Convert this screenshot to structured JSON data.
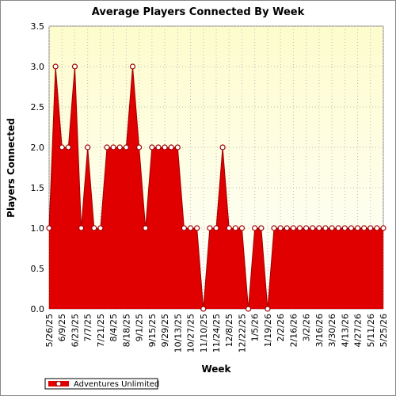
{
  "chart_data": {
    "type": "area",
    "title": "Average Players Connected By Week",
    "x_label": "Week",
    "y_label": "Players Connected",
    "categories": [
      "5/26/25",
      null,
      "6/9/25",
      null,
      "6/23/25",
      null,
      "7/7/25",
      null,
      "7/21/25",
      null,
      "8/4/25",
      null,
      "8/18/25",
      null,
      "9/1/25",
      null,
      "9/15/25",
      null,
      "9/29/25",
      null,
      "10/13/25",
      null,
      "10/27/25",
      null,
      "11/10/25",
      null,
      "11/24/25",
      null,
      "12/8/25",
      null,
      "12/22/25",
      null,
      "1/5/26",
      null,
      "1/19/26",
      null,
      "2/2/26",
      null,
      "2/16/26",
      null,
      "3/2/26",
      null,
      "3/16/26",
      null,
      "3/30/26",
      null,
      "4/13/26",
      null,
      "4/27/26",
      null,
      "5/11/26",
      null,
      "5/25/26"
    ],
    "series": [
      {
        "name": "Adventures Unlimited",
        "color": "#e00000",
        "values": [
          1,
          3,
          2,
          2,
          3,
          1,
          2,
          1,
          1,
          2,
          2,
          2,
          2,
          3,
          2,
          1,
          2,
          2,
          2,
          2,
          2,
          1,
          1,
          1,
          0,
          1,
          1,
          2,
          1,
          1,
          1,
          0,
          1,
          1,
          0,
          1,
          1,
          1,
          1,
          1,
          1,
          1,
          1,
          1,
          1,
          1,
          1,
          1,
          1,
          1,
          1,
          1,
          1
        ]
      }
    ],
    "ylim": [
      0,
      3.5
    ],
    "yticks": [
      {
        "value": 0,
        "label": "0.0"
      },
      {
        "value": 0.5,
        "label": "0.5"
      },
      {
        "value": 1,
        "label": "1.0"
      },
      {
        "value": 1.5,
        "label": "1.5"
      },
      {
        "value": 2,
        "label": "2.0"
      },
      {
        "value": 2.5,
        "label": "2.5"
      },
      {
        "value": 3,
        "label": "3.0"
      },
      {
        "value": 3.5,
        "label": "3.5"
      }
    ],
    "grid": true
  }
}
